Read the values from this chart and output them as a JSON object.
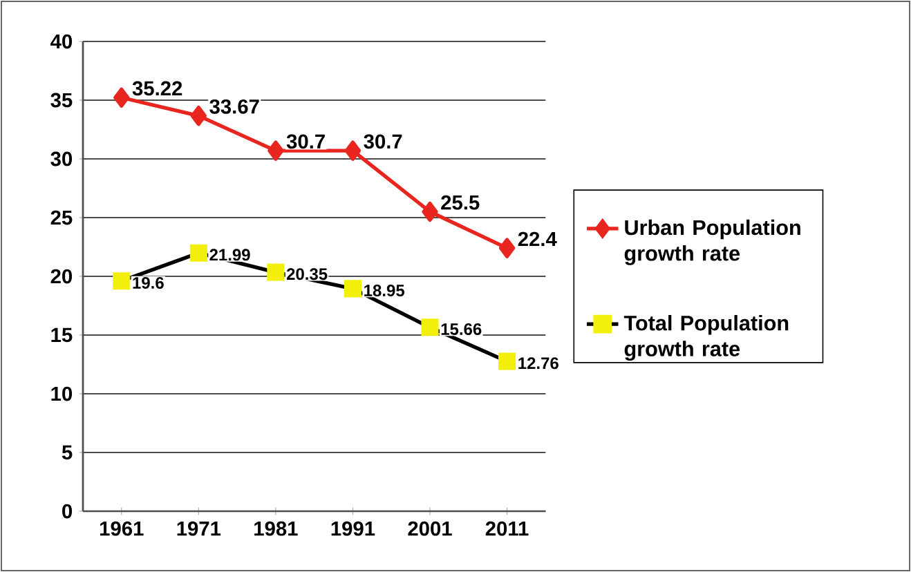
{
  "chart_data": {
    "type": "line",
    "categories": [
      "1961",
      "1971",
      "1981",
      "1991",
      "2001",
      "2011"
    ],
    "series": [
      {
        "name": "Urban Population growth rate",
        "color": "#e8251e",
        "marker": "diamond",
        "values": [
          35.22,
          33.67,
          30.7,
          30.7,
          25.5,
          22.4
        ]
      },
      {
        "name": "Total Population growth rate",
        "color": "#000000",
        "marker": "square",
        "colors": [
          "#f2ef0c",
          "#f2ef0c",
          "#f2ef0c",
          "#f2ef0c",
          "#f2ef0c",
          "#f2ef0c"
        ],
        "values": [
          19.6,
          21.99,
          20.35,
          18.95,
          15.66,
          12.76
        ]
      }
    ],
    "ylim": [
      0,
      40
    ],
    "yticks": [
      0,
      5,
      10,
      15,
      20,
      25,
      30,
      35,
      40
    ],
    "grid": "y",
    "legend": "right",
    "data_labels": true
  }
}
